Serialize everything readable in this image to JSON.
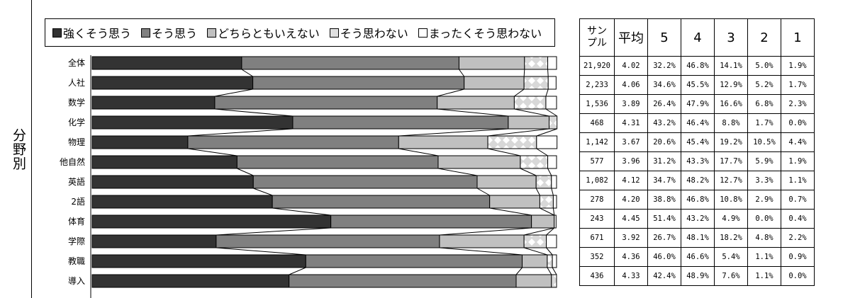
{
  "side_label": "分野別",
  "legend": [
    {
      "label": "強くそう思う",
      "color": "#333333"
    },
    {
      "label": "そう思う",
      "color": "#808080"
    },
    {
      "label": "どちらともいえない",
      "color": "#c0c0c0"
    },
    {
      "label": "そう思わない",
      "color": "#e0e0e0"
    },
    {
      "label": "まったくそう思わない",
      "color": "#ffffff"
    }
  ],
  "table": {
    "headers": [
      "サン\nプル",
      "平均",
      "5",
      "4",
      "3",
      "2",
      "1"
    ],
    "rows": [
      [
        "21,920",
        "4.02",
        "32.2%",
        "46.8%",
        "14.1%",
        "5.0%",
        "1.9%"
      ],
      [
        "2,233",
        "4.06",
        "34.6%",
        "45.5%",
        "12.9%",
        "5.2%",
        "1.7%"
      ],
      [
        "1,536",
        "3.89",
        "26.4%",
        "47.9%",
        "16.6%",
        "6.8%",
        "2.3%"
      ],
      [
        "468",
        "4.31",
        "43.2%",
        "46.4%",
        "8.8%",
        "1.7%",
        "0.0%"
      ],
      [
        "1,142",
        "3.67",
        "20.6%",
        "45.4%",
        "19.2%",
        "10.5%",
        "4.4%"
      ],
      [
        "577",
        "3.96",
        "31.2%",
        "43.3%",
        "17.7%",
        "5.9%",
        "1.9%"
      ],
      [
        "1,082",
        "4.12",
        "34.7%",
        "48.2%",
        "12.7%",
        "3.3%",
        "1.1%"
      ],
      [
        "278",
        "4.20",
        "38.8%",
        "46.8%",
        "10.8%",
        "2.9%",
        "0.7%"
      ],
      [
        "243",
        "4.45",
        "51.4%",
        "43.2%",
        "4.9%",
        "0.0%",
        "0.4%"
      ],
      [
        "671",
        "3.92",
        "26.7%",
        "48.1%",
        "18.2%",
        "4.8%",
        "2.2%"
      ],
      [
        "352",
        "4.36",
        "46.0%",
        "46.6%",
        "5.4%",
        "1.1%",
        "0.9%"
      ],
      [
        "436",
        "4.33",
        "42.4%",
        "48.9%",
        "7.6%",
        "1.1%",
        "0.0%"
      ]
    ]
  },
  "chart_data": {
    "type": "bar",
    "stacked": true,
    "orientation": "horizontal",
    "categories": [
      "全体",
      "人社",
      "数学",
      "化学",
      "物理",
      "他自然",
      "英語",
      "2語",
      "体育",
      "学際",
      "教職",
      "導入"
    ],
    "series": [
      {
        "name": "強くそう思う",
        "values": [
          32.2,
          34.6,
          26.4,
          43.2,
          20.6,
          31.2,
          34.7,
          38.8,
          51.4,
          26.7,
          46.0,
          42.4
        ]
      },
      {
        "name": "そう思う",
        "values": [
          46.8,
          45.5,
          47.9,
          46.4,
          45.4,
          43.3,
          48.2,
          46.8,
          43.2,
          48.1,
          46.6,
          48.9
        ]
      },
      {
        "name": "どちらともいえない",
        "values": [
          14.1,
          12.9,
          16.6,
          8.8,
          19.2,
          17.7,
          12.7,
          10.8,
          4.9,
          18.2,
          5.4,
          7.6
        ]
      },
      {
        "name": "そう思わない",
        "values": [
          5.0,
          5.2,
          6.8,
          1.7,
          10.5,
          5.9,
          3.3,
          2.9,
          0.0,
          4.8,
          1.1,
          1.1
        ]
      },
      {
        "name": "まったくそう思わない",
        "values": [
          1.9,
          1.7,
          2.3,
          0.0,
          4.4,
          1.9,
          1.1,
          0.7,
          0.4,
          2.2,
          0.9,
          0.0
        ]
      }
    ],
    "xlim": [
      0,
      100
    ],
    "series_lines": true
  }
}
